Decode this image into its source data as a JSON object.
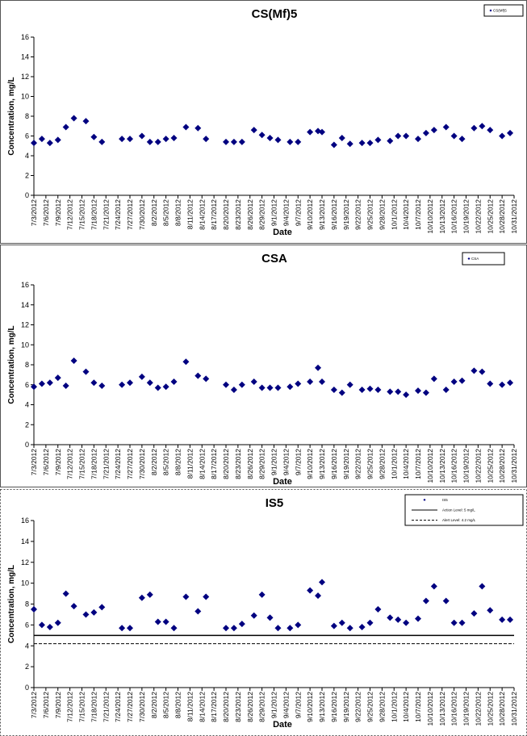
{
  "chart_data": [
    {
      "type": "scatter",
      "title": "CS(Mf)5",
      "y_label": "Concentration, mg/L",
      "x_label": "Date",
      "xlim": [
        "7/3/2012",
        "10/31/2012"
      ],
      "xticks": [
        "7/3/2012",
        "7/6/2012",
        "7/9/2012",
        "7/12/2012",
        "7/15/2012",
        "7/18/2012",
        "7/21/2012",
        "7/24/2012",
        "7/27/2012",
        "7/30/2012",
        "8/2/2012",
        "8/5/2012",
        "8/8/2012",
        "8/11/2012",
        "8/14/2012",
        "8/17/2012",
        "8/20/2012",
        "8/23/2012",
        "8/26/2012",
        "8/29/2012",
        "9/1/2012",
        "9/4/2012",
        "9/7/2012",
        "9/10/2012",
        "9/13/2012",
        "9/16/2012",
        "9/19/2012",
        "9/22/2012",
        "9/25/2012",
        "9/28/2012",
        "10/1/2012",
        "10/4/2012",
        "10/7/2012",
        "10/10/2012",
        "10/13/2012",
        "10/16/2012",
        "10/19/2012",
        "10/22/2012",
        "10/25/2012",
        "10/28/2012",
        "10/31/2012"
      ],
      "ylim": [
        0,
        16
      ],
      "yticks": [
        0,
        2,
        4,
        6,
        8,
        10,
        12,
        14,
        16
      ],
      "series": [
        {
          "name": "CS(Mf)5",
          "color": "#000080",
          "x": [
            "7/3/2012",
            "7/5/2012",
            "7/7/2012",
            "7/9/2012",
            "7/11/2012",
            "7/13/2012",
            "7/16/2012",
            "7/18/2012",
            "7/20/2012",
            "7/25/2012",
            "7/27/2012",
            "7/30/2012",
            "8/1/2012",
            "8/3/2012",
            "8/5/2012",
            "8/7/2012",
            "8/10/2012",
            "8/13/2012",
            "8/15/2012",
            "8/20/2012",
            "8/22/2012",
            "8/24/2012",
            "8/27/2012",
            "8/29/2012",
            "8/31/2012",
            "9/2/2012",
            "9/5/2012",
            "9/7/2012",
            "9/10/2012",
            "9/12/2012",
            "9/13/2012",
            "9/16/2012",
            "9/18/2012",
            "9/20/2012",
            "9/23/2012",
            "9/25/2012",
            "9/27/2012",
            "9/30/2012",
            "10/2/2012",
            "10/4/2012",
            "10/7/2012",
            "10/9/2012",
            "10/11/2012",
            "10/14/2012",
            "10/16/2012",
            "10/18/2012",
            "10/21/2012",
            "10/23/2012",
            "10/25/2012",
            "10/28/2012",
            "10/30/2012"
          ],
          "values": [
            5.3,
            5.7,
            5.3,
            5.6,
            6.9,
            7.8,
            7.5,
            5.9,
            5.4,
            5.7,
            5.7,
            6.0,
            5.4,
            5.4,
            5.7,
            5.8,
            6.9,
            6.8,
            5.7,
            5.4,
            5.4,
            5.4,
            6.6,
            6.1,
            5.8,
            5.6,
            5.4,
            5.4,
            6.4,
            6.5,
            6.4,
            5.1,
            5.8,
            5.2,
            5.3,
            5.3,
            5.6,
            5.5,
            6.0,
            6.0,
            5.7,
            6.3,
            6.6,
            6.9,
            6.0,
            5.7,
            6.8,
            7.0,
            6.6,
            6.0,
            6.3
          ]
        }
      ]
    },
    {
      "type": "scatter",
      "title": "CSA",
      "y_label": "Concentration, mg/L",
      "x_label": "Date",
      "xlim": [
        "7/3/2012",
        "10/31/2012"
      ],
      "xticks": [
        "7/3/2012",
        "7/6/2012",
        "7/9/2012",
        "7/12/2012",
        "7/15/2012",
        "7/18/2012",
        "7/21/2012",
        "7/24/2012",
        "7/27/2012",
        "7/30/2012",
        "8/2/2012",
        "8/5/2012",
        "8/8/2012",
        "8/11/2012",
        "8/14/2012",
        "8/17/2012",
        "8/20/2012",
        "8/23/2012",
        "8/26/2012",
        "8/29/2012",
        "9/1/2012",
        "9/4/2012",
        "9/7/2012",
        "9/10/2012",
        "9/13/2012",
        "9/16/2012",
        "9/19/2012",
        "9/22/2012",
        "9/25/2012",
        "9/28/2012",
        "10/1/2012",
        "10/4/2012",
        "10/7/2012",
        "10/10/2012",
        "10/13/2012",
        "10/16/2012",
        "10/19/2012",
        "10/22/2012",
        "10/25/2012",
        "10/28/2012",
        "10/31/2012"
      ],
      "ylim": [
        0,
        16
      ],
      "yticks": [
        0,
        2,
        4,
        6,
        8,
        10,
        12,
        14,
        16
      ],
      "series": [
        {
          "name": "CSA",
          "color": "#000080",
          "x": [
            "7/3/2012",
            "7/5/2012",
            "7/7/2012",
            "7/9/2012",
            "7/11/2012",
            "7/13/2012",
            "7/16/2012",
            "7/18/2012",
            "7/20/2012",
            "7/25/2012",
            "7/27/2012",
            "7/30/2012",
            "8/1/2012",
            "8/3/2012",
            "8/5/2012",
            "8/7/2012",
            "8/10/2012",
            "8/13/2012",
            "8/15/2012",
            "8/20/2012",
            "8/22/2012",
            "8/24/2012",
            "8/27/2012",
            "8/29/2012",
            "8/31/2012",
            "9/2/2012",
            "9/5/2012",
            "9/7/2012",
            "9/10/2012",
            "9/12/2012",
            "9/13/2012",
            "9/16/2012",
            "9/18/2012",
            "9/20/2012",
            "9/23/2012",
            "9/25/2012",
            "9/27/2012",
            "9/30/2012",
            "10/2/2012",
            "10/4/2012",
            "10/7/2012",
            "10/9/2012",
            "10/11/2012",
            "10/14/2012",
            "10/16/2012",
            "10/18/2012",
            "10/21/2012",
            "10/23/2012",
            "10/25/2012",
            "10/28/2012",
            "10/30/2012"
          ],
          "values": [
            5.8,
            6.1,
            6.2,
            6.7,
            5.9,
            8.4,
            7.3,
            6.2,
            5.9,
            6.0,
            6.2,
            6.8,
            6.2,
            5.7,
            5.8,
            6.3,
            8.3,
            6.9,
            6.6,
            6.0,
            5.5,
            6.0,
            6.3,
            5.7,
            5.7,
            5.7,
            5.8,
            6.1,
            6.3,
            7.7,
            6.3,
            5.5,
            5.2,
            6.0,
            5.5,
            5.6,
            5.5,
            5.3,
            5.3,
            5.0,
            5.4,
            5.2,
            6.6,
            5.5,
            6.3,
            6.4,
            7.4,
            7.3,
            6.1,
            6.0,
            6.2
          ]
        }
      ]
    },
    {
      "type": "scatter",
      "title": "IS5",
      "y_label": "Concentration, mg/L",
      "x_label": "Date",
      "xlim": [
        "7/3/2012",
        "10/31/2012"
      ],
      "xticks": [
        "7/3/2012",
        "7/6/2012",
        "7/9/2012",
        "7/12/2012",
        "7/15/2012",
        "7/18/2012",
        "7/21/2012",
        "7/24/2012",
        "7/27/2012",
        "7/30/2012",
        "8/2/2012",
        "8/5/2012",
        "8/8/2012",
        "8/11/2012",
        "8/14/2012",
        "8/17/2012",
        "8/20/2012",
        "8/23/2012",
        "8/26/2012",
        "8/29/2012",
        "9/1/2012",
        "9/4/2012",
        "9/7/2012",
        "9/10/2012",
        "9/13/2012",
        "9/16/2012",
        "9/19/2012",
        "9/22/2012",
        "9/25/2012",
        "9/28/2012",
        "10/1/2012",
        "10/4/2012",
        "10/7/2012",
        "10/10/2012",
        "10/13/2012",
        "10/16/2012",
        "10/19/2012",
        "10/22/2012",
        "10/25/2012",
        "10/28/2012",
        "10/31/2012"
      ],
      "ylim": [
        0,
        16
      ],
      "yticks": [
        0,
        2,
        4,
        6,
        8,
        10,
        12,
        14,
        16
      ],
      "series": [
        {
          "name": "IS5",
          "color": "#000080",
          "x": [
            "7/3/2012",
            "7/5/2012",
            "7/7/2012",
            "7/9/2012",
            "7/11/2012",
            "7/13/2012",
            "7/16/2012",
            "7/18/2012",
            "7/20/2012",
            "7/25/2012",
            "7/27/2012",
            "7/30/2012",
            "8/1/2012",
            "8/3/2012",
            "8/5/2012",
            "8/7/2012",
            "8/10/2012",
            "8/13/2012",
            "8/15/2012",
            "8/20/2012",
            "8/22/2012",
            "8/24/2012",
            "8/27/2012",
            "8/29/2012",
            "8/31/2012",
            "9/2/2012",
            "9/5/2012",
            "9/7/2012",
            "9/10/2012",
            "9/12/2012",
            "9/13/2012",
            "9/16/2012",
            "9/18/2012",
            "9/20/2012",
            "9/23/2012",
            "9/25/2012",
            "9/27/2012",
            "9/30/2012",
            "10/2/2012",
            "10/4/2012",
            "10/7/2012",
            "10/9/2012",
            "10/11/2012",
            "10/14/2012",
            "10/16/2012",
            "10/18/2012",
            "10/21/2012",
            "10/23/2012",
            "10/25/2012",
            "10/28/2012",
            "10/30/2012"
          ],
          "values": [
            7.5,
            6.0,
            5.8,
            6.2,
            9.0,
            7.8,
            7.0,
            7.2,
            7.7,
            5.7,
            5.7,
            8.6,
            8.9,
            6.3,
            6.3,
            5.7,
            8.7,
            7.3,
            8.7,
            5.7,
            5.7,
            6.1,
            6.9,
            8.9,
            6.7,
            5.7,
            5.7,
            6.0,
            9.3,
            8.8,
            10.1,
            5.9,
            6.2,
            5.7,
            5.8,
            6.2,
            7.5,
            6.7,
            6.5,
            6.2,
            6.6,
            8.3,
            9.7,
            8.3,
            6.2,
            6.2,
            7.1,
            9.7,
            7.4,
            6.5,
            6.5
          ]
        }
      ],
      "reference_lines": [
        {
          "name": "Action Level: 5 mg/L",
          "value": 5,
          "style": "solid",
          "color": "#000000"
        },
        {
          "name": "Alert Level: 4.2 mg/L",
          "value": 4.2,
          "style": "dashed",
          "color": "#000000"
        }
      ]
    }
  ]
}
